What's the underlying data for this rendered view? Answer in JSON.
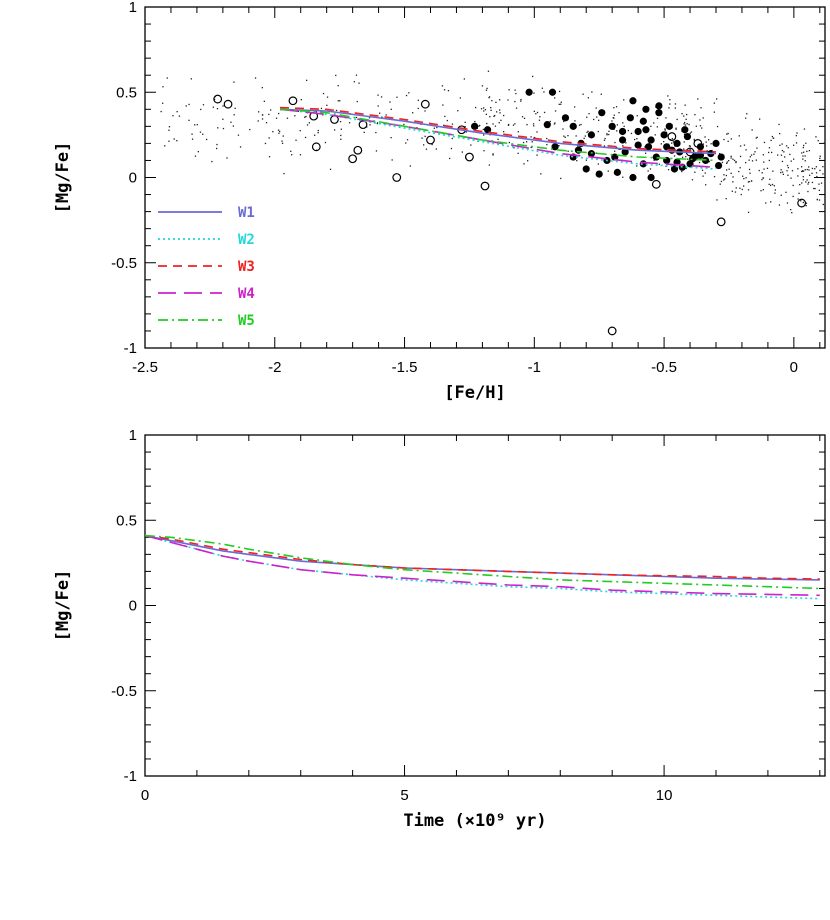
{
  "chart_data": [
    {
      "type": "scatter",
      "panel": "top",
      "xlabel": "[Fe/H]",
      "ylabel": "[Mg/Fe]",
      "xlim": [
        -2.5,
        0.12
      ],
      "ylim": [
        -1,
        1
      ],
      "x_ticks": [
        "-2.5",
        "-2",
        "-1.5",
        "-1",
        "-0.5",
        "0"
      ],
      "y_ticks": [
        "-1",
        "-0.5",
        "0",
        "0.5",
        "1"
      ],
      "grid": false,
      "legend_position": "lower-left",
      "legend": [
        {
          "label": "W1",
          "color": "#6a6ad8",
          "dash": "solid"
        },
        {
          "label": "W2",
          "color": "#22d8d8",
          "dash": "dotted"
        },
        {
          "label": "W3",
          "color": "#ee2222",
          "dash": "dashed"
        },
        {
          "label": "W4",
          "color": "#cc22cc",
          "dash": "longdash"
        },
        {
          "label": "W5",
          "color": "#22cc22",
          "dash": "dashdot"
        }
      ],
      "model_series": [
        {
          "name": "W1",
          "color": "#6a6ad8",
          "dash": "solid",
          "x": [
            -1.98,
            -1.8,
            -1.5,
            -1.2,
            -0.9,
            -0.6,
            -0.3
          ],
          "y": [
            0.4,
            0.39,
            0.33,
            0.26,
            0.2,
            0.16,
            0.14
          ]
        },
        {
          "name": "W2",
          "color": "#22d8d8",
          "dash": "dotted",
          "x": [
            -1.98,
            -1.8,
            -1.5,
            -1.2,
            -0.9,
            -0.6,
            -0.3
          ],
          "y": [
            0.4,
            0.37,
            0.29,
            0.21,
            0.13,
            0.08,
            0.05
          ]
        },
        {
          "name": "W3",
          "color": "#ee2222",
          "dash": "dashed",
          "x": [
            -1.98,
            -1.8,
            -1.5,
            -1.2,
            -0.9,
            -0.6,
            -0.3
          ],
          "y": [
            0.41,
            0.4,
            0.34,
            0.27,
            0.21,
            0.17,
            0.15
          ]
        },
        {
          "name": "W4",
          "color": "#cc22cc",
          "dash": "longdash",
          "x": [
            -1.98,
            -1.8,
            -1.5,
            -1.2,
            -0.9,
            -0.6,
            -0.3
          ],
          "y": [
            0.4,
            0.37,
            0.3,
            0.22,
            0.14,
            0.09,
            0.06
          ]
        },
        {
          "name": "W5",
          "color": "#22cc22",
          "dash": "dashdot",
          "x": [
            -1.98,
            -1.8,
            -1.5,
            -1.2,
            -0.9,
            -0.6,
            -0.3
          ],
          "y": [
            0.4,
            0.38,
            0.3,
            0.22,
            0.16,
            0.12,
            0.1
          ]
        }
      ],
      "open_circles": {
        "x": [
          -2.22,
          -2.18,
          -1.93,
          -1.85,
          -1.84,
          -1.77,
          -1.7,
          -1.68,
          -1.66,
          -1.53,
          -1.42,
          -1.4,
          -1.28,
          -1.25,
          -1.19,
          -0.7,
          -0.53,
          -0.47,
          -0.4,
          -0.37,
          -0.28,
          0.03
        ],
        "y": [
          0.46,
          0.43,
          0.45,
          0.36,
          0.18,
          0.34,
          0.11,
          0.16,
          0.31,
          0.0,
          0.43,
          0.22,
          0.28,
          0.12,
          -0.05,
          -0.9,
          -0.04,
          0.24,
          0.15,
          0.2,
          -0.26,
          -0.15
        ]
      },
      "filled_circles": {
        "x": [
          -1.23,
          -1.18,
          -1.02,
          -0.95,
          -0.92,
          -0.88,
          -0.85,
          -0.82,
          -0.8,
          -0.78,
          -0.75,
          -0.72,
          -0.7,
          -0.68,
          -0.66,
          -0.65,
          -0.63,
          -0.62,
          -0.6,
          -0.58,
          -0.57,
          -0.56,
          -0.55,
          -0.53,
          -0.52,
          -0.5,
          -0.49,
          -0.48,
          -0.46,
          -0.45,
          -0.44,
          -0.42,
          -0.4,
          -0.38,
          -0.36,
          -0.34,
          -0.32,
          -0.3,
          -0.29,
          -0.28,
          -0.85,
          -0.78,
          -0.74,
          -0.66,
          -0.62,
          -0.58,
          -0.55,
          -0.52,
          -0.49,
          -0.45,
          -0.41,
          -0.36,
          -0.93,
          -0.83,
          -0.69,
          -0.6,
          -0.57,
          -0.47,
          -0.43,
          -0.39
        ],
        "y": [
          0.3,
          0.28,
          0.5,
          0.31,
          0.18,
          0.35,
          0.12,
          0.2,
          0.05,
          0.25,
          0.02,
          0.1,
          0.3,
          0.03,
          0.22,
          0.15,
          0.35,
          0.0,
          0.27,
          0.08,
          0.4,
          0.18,
          0.0,
          0.12,
          0.38,
          0.25,
          0.1,
          0.3,
          0.05,
          0.2,
          0.15,
          0.28,
          0.08,
          0.12,
          0.18,
          0.1,
          0.14,
          0.2,
          0.07,
          0.12,
          0.3,
          0.14,
          0.38,
          0.27,
          0.45,
          0.33,
          0.22,
          0.42,
          0.18,
          0.09,
          0.24,
          0.13,
          0.5,
          0.16,
          0.12,
          0.19,
          0.28,
          0.16,
          0.06,
          0.11
        ]
      },
      "small_dots_count": 700
    },
    {
      "type": "line",
      "panel": "bottom",
      "xlabel": "Time (×10⁹ yr)",
      "ylabel": "[Mg/Fe]",
      "xlim": [
        0,
        13.1
      ],
      "ylim": [
        -1,
        1
      ],
      "x_ticks": [
        "0",
        "5",
        "10"
      ],
      "y_ticks": [
        "-1",
        "-0.5",
        "0",
        "0.5",
        "1"
      ],
      "grid": false,
      "series": [
        {
          "name": "W1",
          "color": "#6a6ad8",
          "dash": "solid",
          "x": [
            0,
            0.5,
            1,
            1.5,
            2,
            3,
            4,
            5,
            6,
            7,
            8,
            9,
            10,
            11,
            12,
            13
          ],
          "y": [
            0.41,
            0.38,
            0.35,
            0.32,
            0.3,
            0.26,
            0.24,
            0.22,
            0.21,
            0.2,
            0.19,
            0.18,
            0.17,
            0.16,
            0.155,
            0.15
          ]
        },
        {
          "name": "W2",
          "color": "#22d8d8",
          "dash": "dotted",
          "x": [
            0,
            0.5,
            1,
            1.5,
            2,
            3,
            4,
            5,
            6,
            7,
            8,
            9,
            10,
            11,
            12,
            13
          ],
          "y": [
            0.41,
            0.37,
            0.33,
            0.29,
            0.26,
            0.21,
            0.18,
            0.15,
            0.13,
            0.11,
            0.1,
            0.08,
            0.07,
            0.06,
            0.05,
            0.04
          ]
        },
        {
          "name": "W3",
          "color": "#ee2222",
          "dash": "dashed",
          "x": [
            0,
            0.5,
            1,
            1.5,
            2,
            3,
            4,
            5,
            6,
            7,
            8,
            9,
            10,
            11,
            12,
            13
          ],
          "y": [
            0.41,
            0.39,
            0.36,
            0.33,
            0.31,
            0.27,
            0.24,
            0.22,
            0.21,
            0.2,
            0.19,
            0.18,
            0.175,
            0.17,
            0.16,
            0.155
          ]
        },
        {
          "name": "W4",
          "color": "#cc22cc",
          "dash": "longdash",
          "x": [
            0,
            0.5,
            1,
            1.5,
            2,
            3,
            4,
            5,
            6,
            7,
            8,
            9,
            10,
            11,
            12,
            13
          ],
          "y": [
            0.41,
            0.37,
            0.33,
            0.29,
            0.26,
            0.21,
            0.18,
            0.16,
            0.14,
            0.12,
            0.11,
            0.09,
            0.08,
            0.07,
            0.065,
            0.06
          ]
        },
        {
          "name": "W5",
          "color": "#22cc22",
          "dash": "dashdot",
          "x": [
            0,
            0.5,
            1,
            1.5,
            2,
            3,
            4,
            5,
            6,
            7,
            8,
            9,
            10,
            11,
            12,
            13
          ],
          "y": [
            0.41,
            0.4,
            0.38,
            0.36,
            0.33,
            0.28,
            0.24,
            0.21,
            0.19,
            0.17,
            0.15,
            0.14,
            0.13,
            0.12,
            0.11,
            0.1
          ]
        }
      ]
    }
  ]
}
